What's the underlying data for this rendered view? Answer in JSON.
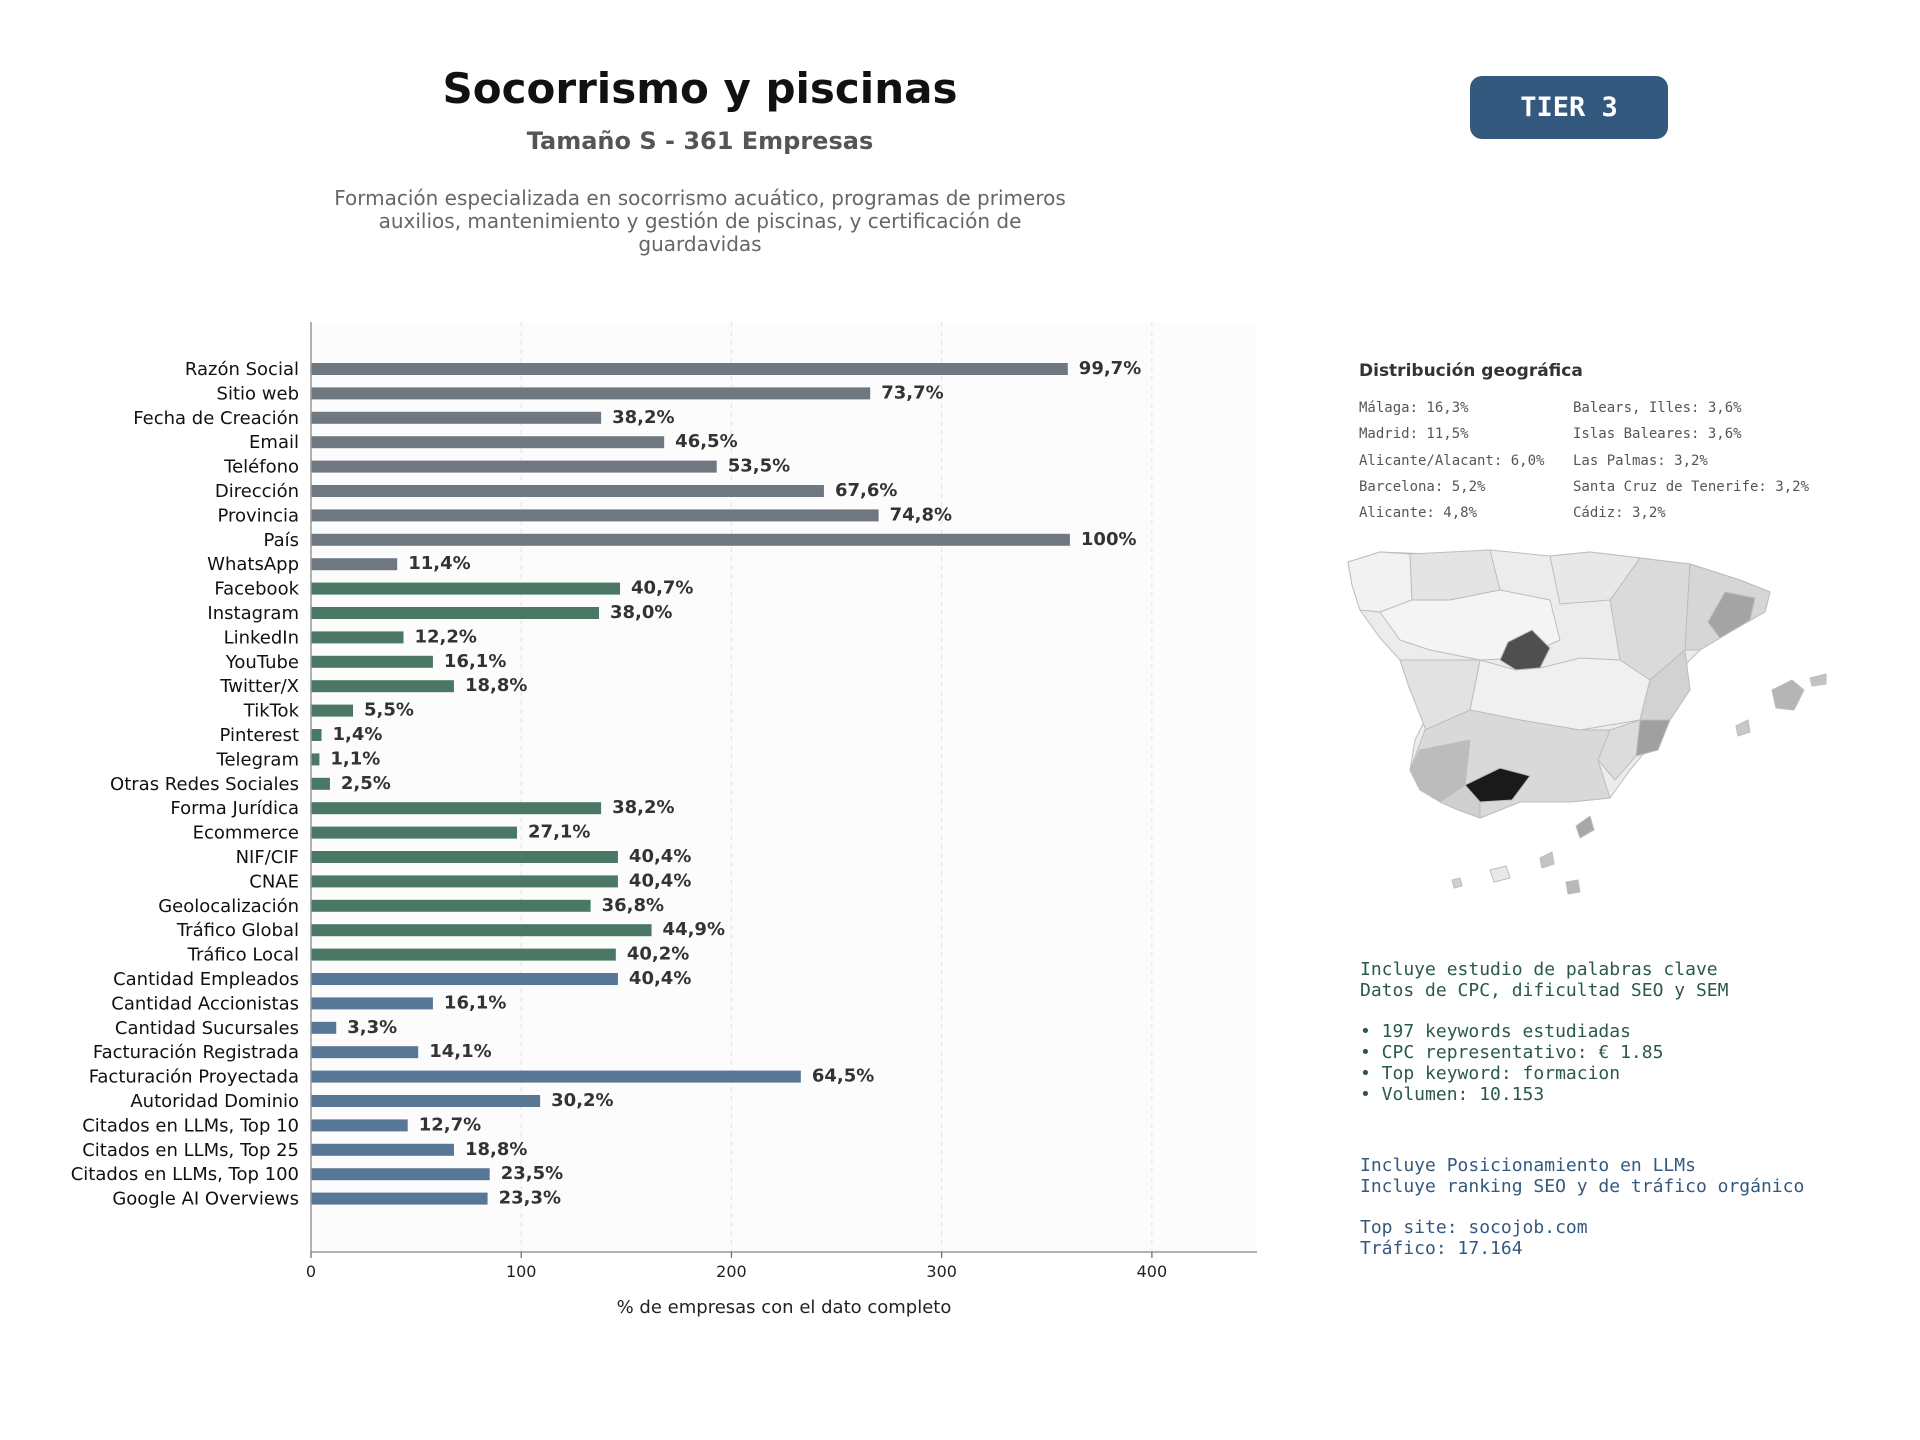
{
  "header": {
    "title": "Socorrismo y piscinas",
    "subtitle": "Tamaño S - 361 Empresas",
    "description": "Formación especializada en socorrismo acuático, programas de primeros auxilios, mantenimiento y gestión de piscinas, y certificación de guardavidas",
    "tier_label": "TIER 3"
  },
  "colors": {
    "gray": "#6f7780",
    "green": "#4a7864",
    "blue": "#587796",
    "tier_badge": "#34597f"
  },
  "chart_data": {
    "type": "bar",
    "orientation": "horizontal",
    "xlabel": "% de empresas con el dato completo",
    "xlim": [
      0,
      450
    ],
    "xticks": [
      0,
      100,
      200,
      300,
      400
    ],
    "grid": "vertical dashed",
    "categories": [
      {
        "label": "Razón Social",
        "value": 360,
        "pct": "99,7%",
        "group": "gray"
      },
      {
        "label": "Sitio web",
        "value": 266,
        "pct": "73,7%",
        "group": "gray"
      },
      {
        "label": "Fecha de Creación",
        "value": 138,
        "pct": "38,2%",
        "group": "gray"
      },
      {
        "label": "Email",
        "value": 168,
        "pct": "46,5%",
        "group": "gray"
      },
      {
        "label": "Teléfono",
        "value": 193,
        "pct": "53,5%",
        "group": "gray"
      },
      {
        "label": "Dirección",
        "value": 244,
        "pct": "67,6%",
        "group": "gray"
      },
      {
        "label": "Provincia",
        "value": 270,
        "pct": "74,8%",
        "group": "gray"
      },
      {
        "label": "País",
        "value": 361,
        "pct": "100%",
        "group": "gray"
      },
      {
        "label": "WhatsApp",
        "value": 41,
        "pct": "11,4%",
        "group": "gray"
      },
      {
        "label": "Facebook",
        "value": 147,
        "pct": "40,7%",
        "group": "green"
      },
      {
        "label": "Instagram",
        "value": 137,
        "pct": "38,0%",
        "group": "green"
      },
      {
        "label": "LinkedIn",
        "value": 44,
        "pct": "12,2%",
        "group": "green"
      },
      {
        "label": "YouTube",
        "value": 58,
        "pct": "16,1%",
        "group": "green"
      },
      {
        "label": "Twitter/X",
        "value": 68,
        "pct": "18,8%",
        "group": "green"
      },
      {
        "label": "TikTok",
        "value": 20,
        "pct": "5,5%",
        "group": "green"
      },
      {
        "label": "Pinterest",
        "value": 5,
        "pct": "1,4%",
        "group": "green"
      },
      {
        "label": "Telegram",
        "value": 4,
        "pct": "1,1%",
        "group": "green"
      },
      {
        "label": "Otras Redes Sociales",
        "value": 9,
        "pct": "2,5%",
        "group": "green"
      },
      {
        "label": "Forma Jurídica",
        "value": 138,
        "pct": "38,2%",
        "group": "green"
      },
      {
        "label": "Ecommerce",
        "value": 98,
        "pct": "27,1%",
        "group": "green"
      },
      {
        "label": "NIF/CIF",
        "value": 146,
        "pct": "40,4%",
        "group": "green"
      },
      {
        "label": "CNAE",
        "value": 146,
        "pct": "40,4%",
        "group": "green"
      },
      {
        "label": "Geolocalización",
        "value": 133,
        "pct": "36,8%",
        "group": "green"
      },
      {
        "label": "Tráfico Global",
        "value": 162,
        "pct": "44,9%",
        "group": "green"
      },
      {
        "label": "Tráfico Local",
        "value": 145,
        "pct": "40,2%",
        "group": "green"
      },
      {
        "label": "Cantidad Empleados",
        "value": 146,
        "pct": "40,4%",
        "group": "blue"
      },
      {
        "label": "Cantidad Accionistas",
        "value": 58,
        "pct": "16,1%",
        "group": "blue"
      },
      {
        "label": "Cantidad Sucursales",
        "value": 12,
        "pct": "3,3%",
        "group": "blue"
      },
      {
        "label": "Facturación Registrada",
        "value": 51,
        "pct": "14,1%",
        "group": "blue"
      },
      {
        "label": "Facturación Proyectada",
        "value": 233,
        "pct": "64,5%",
        "group": "blue"
      },
      {
        "label": "Autoridad Dominio",
        "value": 109,
        "pct": "30,2%",
        "group": "blue"
      },
      {
        "label": "Citados en LLMs, Top 10",
        "value": 46,
        "pct": "12,7%",
        "group": "blue"
      },
      {
        "label": "Citados en LLMs, Top 25",
        "value": 68,
        "pct": "18,8%",
        "group": "blue"
      },
      {
        "label": "Citados en LLMs, Top 100",
        "value": 85,
        "pct": "23,5%",
        "group": "blue"
      },
      {
        "label": "Google AI Overviews",
        "value": 84,
        "pct": "23,3%",
        "group": "blue"
      }
    ]
  },
  "geo": {
    "title": "Distribución geográfica",
    "left": [
      "Málaga: 16,3%",
      "Madrid: 11,5%",
      "Alicante/Alacant: 6,0%",
      "Barcelona: 5,2%",
      "Alicante: 4,8%"
    ],
    "right": [
      "Balears, Illes: 3,6%",
      "Islas Baleares: 3,6%",
      "Las Palmas: 3,2%",
      "Santa Cruz de Tenerife: 3,2%",
      "Cádiz: 3,2%"
    ]
  },
  "seo_info": {
    "line1": "Incluye estudio de palabras clave",
    "line2": "Datos de CPC, dificultad SEO y SEM",
    "bullets": [
      "• 197 keywords estudiadas",
      "• CPC representativo: € 1.85",
      "• Top keyword: formacion",
      "• Volumen: 10.153"
    ]
  },
  "llm_info": {
    "line1": "Incluye Posicionamiento en LLMs",
    "line2": "Incluye ranking SEO y de tráfico orgánico",
    "site": "Top site: socojob.com",
    "traffic": "Tráfico: 17.164"
  }
}
